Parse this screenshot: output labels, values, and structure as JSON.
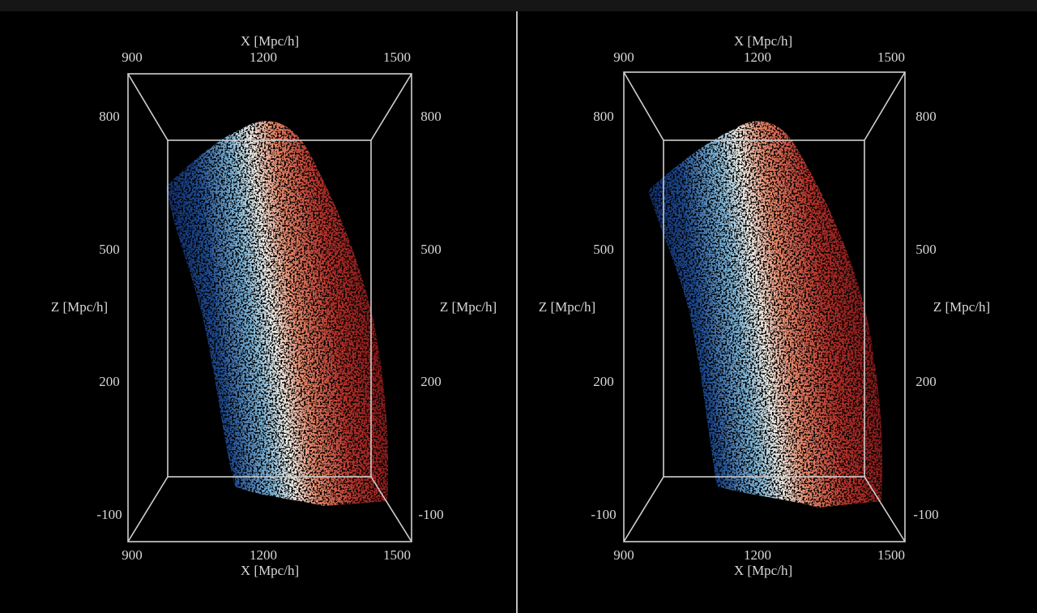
{
  "panels": [
    {
      "x_label_top": "X [Mpc/h]",
      "x_ticks_top": [
        "900",
        "1200",
        "1500"
      ],
      "x_label_bottom": "X [Mpc/h]",
      "x_ticks_bottom": [
        "900",
        "1200",
        "1500"
      ],
      "z_label_left": "Z [Mpc/h]",
      "z_ticks_left": [
        "800",
        "500",
        "200",
        "-100"
      ],
      "z_label_right": "Z [Mpc/h]",
      "z_ticks_right": [
        "800",
        "500",
        "200",
        "-100"
      ]
    },
    {
      "x_label_top": "X [Mpc/h]",
      "x_ticks_top": [
        "900",
        "1200",
        "1500"
      ],
      "x_label_bottom": "X [Mpc/h]",
      "x_ticks_bottom": [
        "900",
        "1200",
        "1500"
      ],
      "z_label_left": "Z [Mpc/h]",
      "z_ticks_left": [
        "800",
        "500",
        "200",
        "-100"
      ],
      "z_label_right": "Z [Mpc/h]",
      "z_ticks_right": [
        "800",
        "500",
        "200",
        "-100"
      ]
    }
  ]
}
